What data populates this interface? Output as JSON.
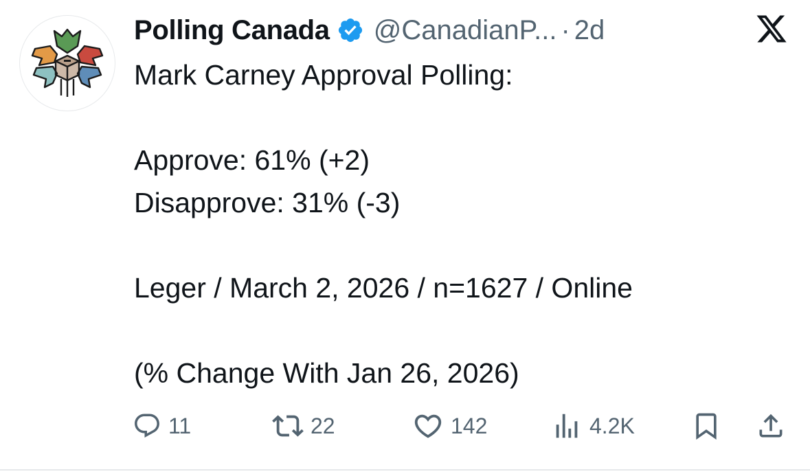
{
  "author": {
    "display_name": "Polling Canada",
    "handle": "@CanadianP...",
    "separator": "·",
    "time": "2d",
    "verified": true,
    "avatar_icon": "polling-canada-logo"
  },
  "platform_icon": "x-logo",
  "post": {
    "lines": [
      "Mark Carney Approval Polling:",
      "",
      "Approve: 61% (+2)",
      "Disapprove: 31% (-3)",
      "",
      "Leger / March 2, 2026 / n=1627 / Online",
      "",
      "(% Change With Jan 26, 2026)"
    ]
  },
  "actions": {
    "reply": {
      "icon": "reply-icon",
      "count": "11"
    },
    "repost": {
      "icon": "repost-icon",
      "count": "22"
    },
    "like": {
      "icon": "heart-icon",
      "count": "142"
    },
    "views": {
      "icon": "views-icon",
      "count": "4.2K"
    },
    "bookmark": {
      "icon": "bookmark-icon"
    },
    "share": {
      "icon": "share-icon"
    }
  },
  "colors": {
    "text_primary": "#0f1419",
    "text_secondary": "#536471",
    "verified_blue": "#1d9bf0",
    "divider": "#e6e8ea"
  }
}
